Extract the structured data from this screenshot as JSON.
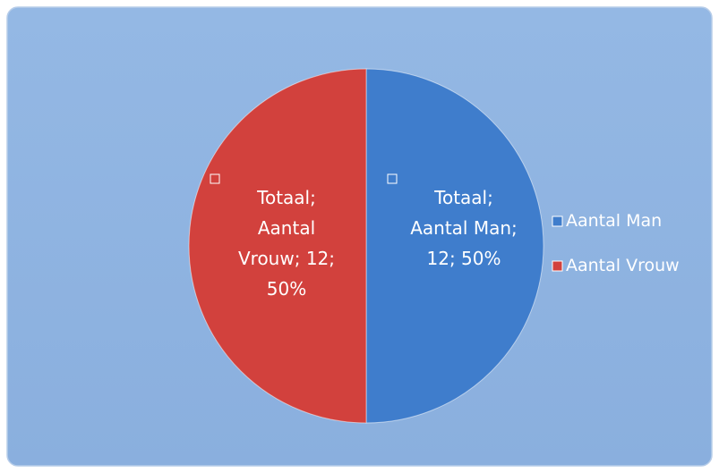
{
  "chart_data": {
    "type": "pie",
    "categories": [
      "Aantal Man",
      "Aantal Vrouw"
    ],
    "values": [
      12,
      12
    ],
    "value_labels": [
      "Totaal; Aantal Man; 12; 50%",
      "Totaal; Aantal Vrouw; 12; 50%"
    ],
    "colors": [
      "#3f7dcc",
      "#d2413d"
    ],
    "legend": "right"
  }
}
